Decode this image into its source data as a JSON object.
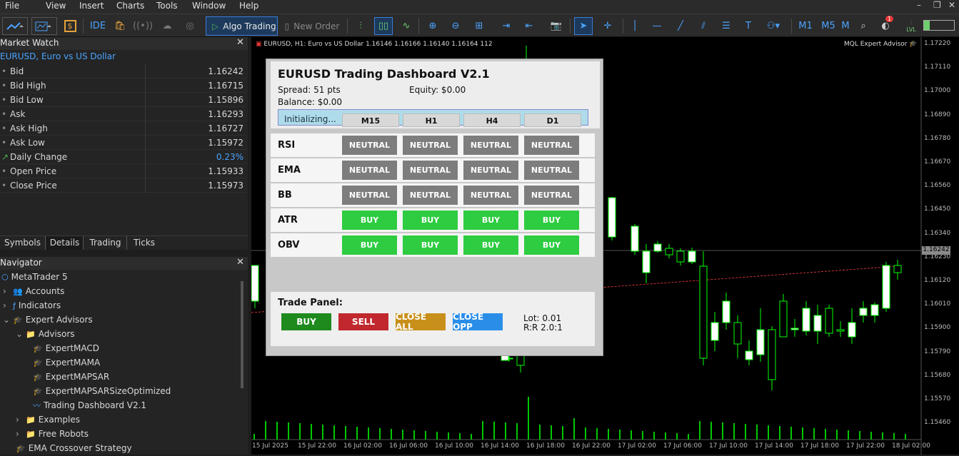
{
  "menu": [
    "File",
    "View",
    "Insert",
    "Charts",
    "Tools",
    "Window",
    "Help"
  ],
  "toolbar": {
    "ide": "IDE",
    "algo": "Algo Trading",
    "new_order": "New Order",
    "periods": [
      "M1",
      "M5",
      "M"
    ],
    "badge": "1",
    "lvl": "LVL"
  },
  "market_watch": {
    "title": "Market Watch",
    "symbol": "EURUSD, Euro vs US Dollar",
    "rows": [
      {
        "label": "Bid",
        "value": "1.16242"
      },
      {
        "label": "Bid High",
        "value": "1.16715"
      },
      {
        "label": "Bid Low",
        "value": "1.15896"
      },
      {
        "label": "Ask",
        "value": "1.16293"
      },
      {
        "label": "Ask High",
        "value": "1.16727"
      },
      {
        "label": "Ask Low",
        "value": "1.15972"
      },
      {
        "label": "Daily Change",
        "value": "0.23%"
      },
      {
        "label": "Open Price",
        "value": "1.15933"
      },
      {
        "label": "Close Price",
        "value": "1.15973"
      }
    ],
    "tabs": [
      "Symbols",
      "Details",
      "Trading",
      "Ticks"
    ]
  },
  "navigator": {
    "title": "Navigator",
    "items": [
      "MetaTrader 5",
      "Accounts",
      "Indicators",
      "Expert Advisors",
      "Advisors",
      "ExpertMACD",
      "ExpertMAMA",
      "ExpertMAPSAR",
      "ExpertMAPSARSizeOptimized",
      "Trading Dashboard V2.1",
      "Examples",
      "Free Robots",
      "EMA Crossover Strategy"
    ]
  },
  "chart": {
    "header": "EURUSD, H1:  Euro vs US Dollar  1.16146 1.16166 1.16140 1.16164  112",
    "ea_label": "MQL Expert Advisor",
    "price_tag": "1.16242",
    "yticks": [
      "1.17220",
      "1.17110",
      "1.17000",
      "1.16890",
      "1.16780",
      "1.16670",
      "1.16560",
      "1.16450",
      "1.16340",
      "1.16230",
      "1.16120",
      "1.16010",
      "1.15900",
      "1.15790",
      "1.15680",
      "1.15570",
      "1.15460"
    ],
    "xticks": [
      "15 Jul 2025",
      "15 Jul 22:00",
      "16 Jul 02:00",
      "16 Jul 06:00",
      "16 Jul 10:00",
      "16 Jul 14:00",
      "16 Jul 18:00",
      "16 Jul 22:00",
      "17 Jul 02:00",
      "17 Jul 06:00",
      "17 Jul 10:00",
      "17 Jul 14:00",
      "17 Jul 18:00",
      "17 Jul 22:00",
      "18 Jul 02:00"
    ],
    "colors": {
      "bull": "#ffffff",
      "bear": "#000000",
      "wick": "#00ff00",
      "volume": "#00c800",
      "bid": "#a0a0a0",
      "trend": "#ff4040"
    }
  },
  "dashboard": {
    "title": "EURUSD Trading Dashboard V2.1",
    "spread": "Spread: 51 pts",
    "equity": "Equity: $0.00",
    "balance": "Balance: $0.00",
    "status": "Initializing...",
    "timeframes": [
      "M15",
      "H1",
      "H4",
      "D1"
    ],
    "rows": [
      {
        "name": "RSI",
        "signals": [
          "NEUTRAL",
          "NEUTRAL",
          "NEUTRAL",
          "NEUTRAL"
        ]
      },
      {
        "name": "EMA",
        "signals": [
          "NEUTRAL",
          "NEUTRAL",
          "NEUTRAL",
          "NEUTRAL"
        ]
      },
      {
        "name": "BB",
        "signals": [
          "NEUTRAL",
          "NEUTRAL",
          "NEUTRAL",
          "NEUTRAL"
        ]
      },
      {
        "name": "ATR",
        "signals": [
          "BUY",
          "BUY",
          "BUY",
          "BUY"
        ]
      },
      {
        "name": "OBV",
        "signals": [
          "BUY",
          "BUY",
          "BUY",
          "BUY"
        ]
      }
    ],
    "trade_panel": {
      "title": "Trade Panel:",
      "buy": "BUY",
      "sell": "SELL",
      "close_all": "CLOSE ALL",
      "close_opp": "CLOSE OPP",
      "lot": "Lot: 0.01",
      "rr": "R:R 2.0:1"
    }
  }
}
